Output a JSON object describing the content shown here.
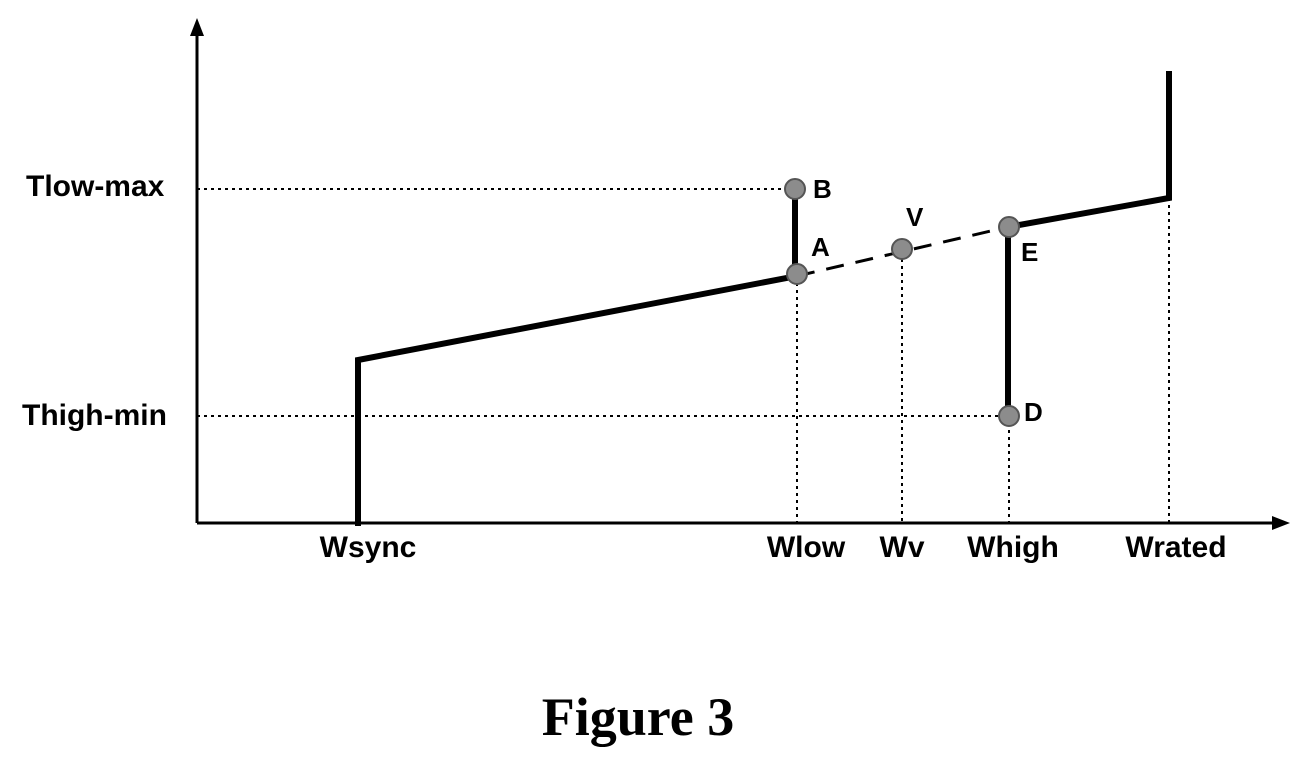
{
  "y_axis_labels": {
    "tlow_max": "Tlow-max",
    "thigh_min": "Thigh-min"
  },
  "x_axis_labels": {
    "wsync": "Wsync",
    "wlow": "Wlow",
    "wv": "Wv",
    "whigh": "Whigh",
    "wrated": "Wrated"
  },
  "points": {
    "a": "A",
    "b": "B",
    "v": "V",
    "e": "E",
    "d": "D"
  },
  "caption": "Figure 3",
  "colors": {
    "line": "#000000",
    "marker": "#8c8c8c"
  }
}
